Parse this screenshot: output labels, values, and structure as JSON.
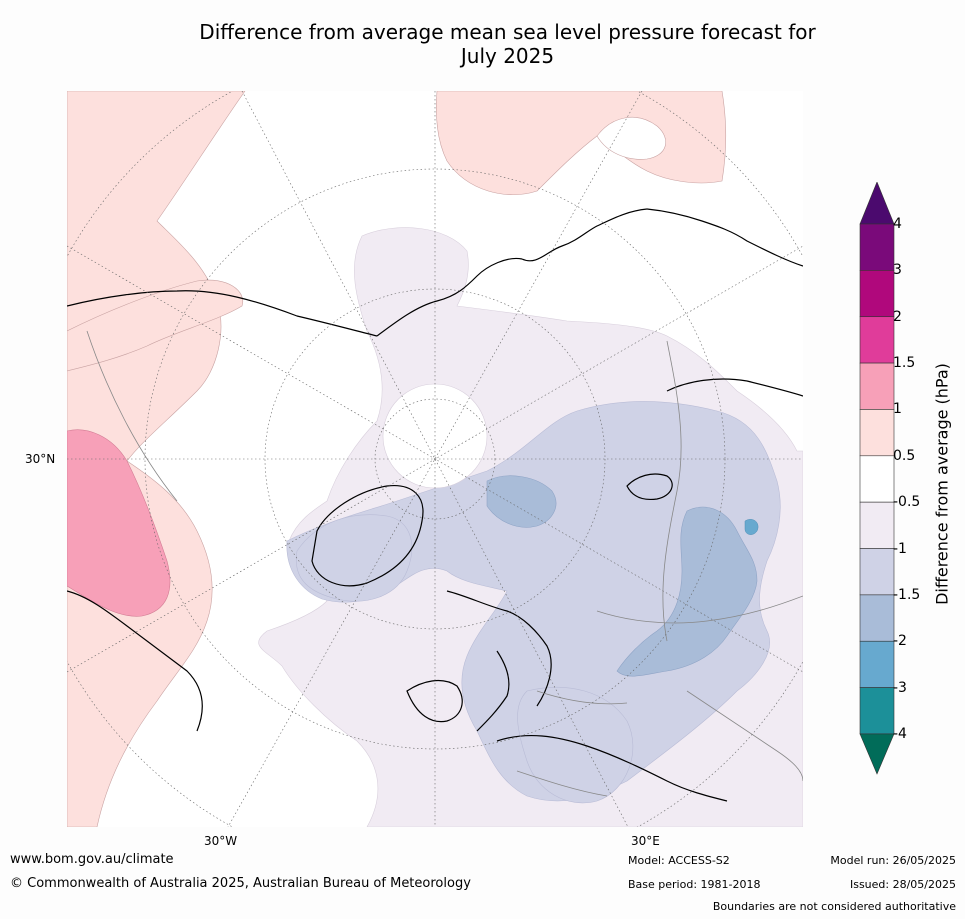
{
  "header": {
    "title_line1": "Difference from average mean sea level pressure forecast for",
    "title_line2": "July 2025"
  },
  "map": {
    "projection": "north-polar-stereographic",
    "axis_labels": {
      "lat_left": "30°N",
      "lon_30w": "30°W",
      "lon_30e": "30°E"
    },
    "regions": [
      {
        "name": "north-pacific-positive",
        "category": "0.5 to 1"
      },
      {
        "name": "north-pacific-positive-core",
        "category": "1 to 1.5"
      },
      {
        "name": "arctic-russia-negative",
        "category": "-1 to -1.5"
      },
      {
        "name": "siberia-negative",
        "category": "-1.5 to -2"
      },
      {
        "name": "europe-weak-negative",
        "category": "-0.5 to -1"
      }
    ]
  },
  "colorbar": {
    "title": "Difference from average (hPa)",
    "ticks": [
      "4",
      "3",
      "2",
      "1.5",
      "1",
      "0.5",
      "-0.5",
      "-1",
      "-1.5",
      "-2",
      "-3",
      "-4"
    ],
    "colors": {
      "above_4": "#4b0a6e",
      "3_to_4": "#7a0a7a",
      "2_to_3": "#b0087c",
      "1.5_to_2": "#e03c9a",
      "1_to_1.5": "#f7a0b8",
      "0.5_to_1": "#fde0dd",
      "-0.5_to_0.5": "#ffffff",
      "-1_to_-0.5": "#f1ebf3",
      "-1.5_to_-1": "#cfd2e6",
      "-2_to_-1.5": "#a9bcd8",
      "-3_to_-2": "#67a9cf",
      "-4_to_-3": "#1c9099",
      "below_-4": "#016c59"
    }
  },
  "footer": {
    "website": "www.bom.gov.au/climate",
    "copyright": "© Commonwealth of Australia 2025, Australian Bureau of Meteorology",
    "model": "Model: ACCESS-S2",
    "base_period": "Base period: 1981-2018",
    "model_run": "Model run: 26/05/2025",
    "issued": "Issued: 28/05/2025",
    "disclaimer": "Boundaries are not considered authoritative"
  }
}
